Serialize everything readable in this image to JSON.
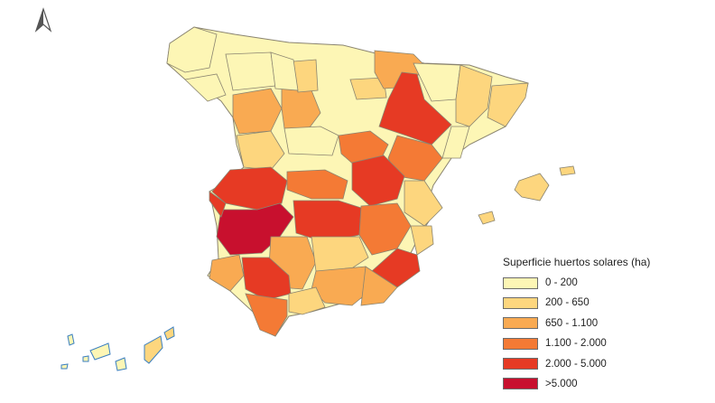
{
  "legend": {
    "title": "Superficie huertos solares (ha)",
    "classes": [
      {
        "label": "0 - 200",
        "color": "#fdf6b5"
      },
      {
        "label": "200 - 650",
        "color": "#fdd67e"
      },
      {
        "label": "650 - 1.100",
        "color": "#f9aa52"
      },
      {
        "label": "1.100 - 2.000",
        "color": "#f47a35"
      },
      {
        "label": "2.000 - 5.000",
        "color": "#e63a24"
      },
      {
        "label": ">5.000",
        "color": "#c8102e"
      }
    ]
  },
  "north_arrow": {
    "icon": "north-arrow-icon"
  },
  "colors": {
    "border": "#8a8470",
    "island_outline": "#3a7fc0"
  }
}
